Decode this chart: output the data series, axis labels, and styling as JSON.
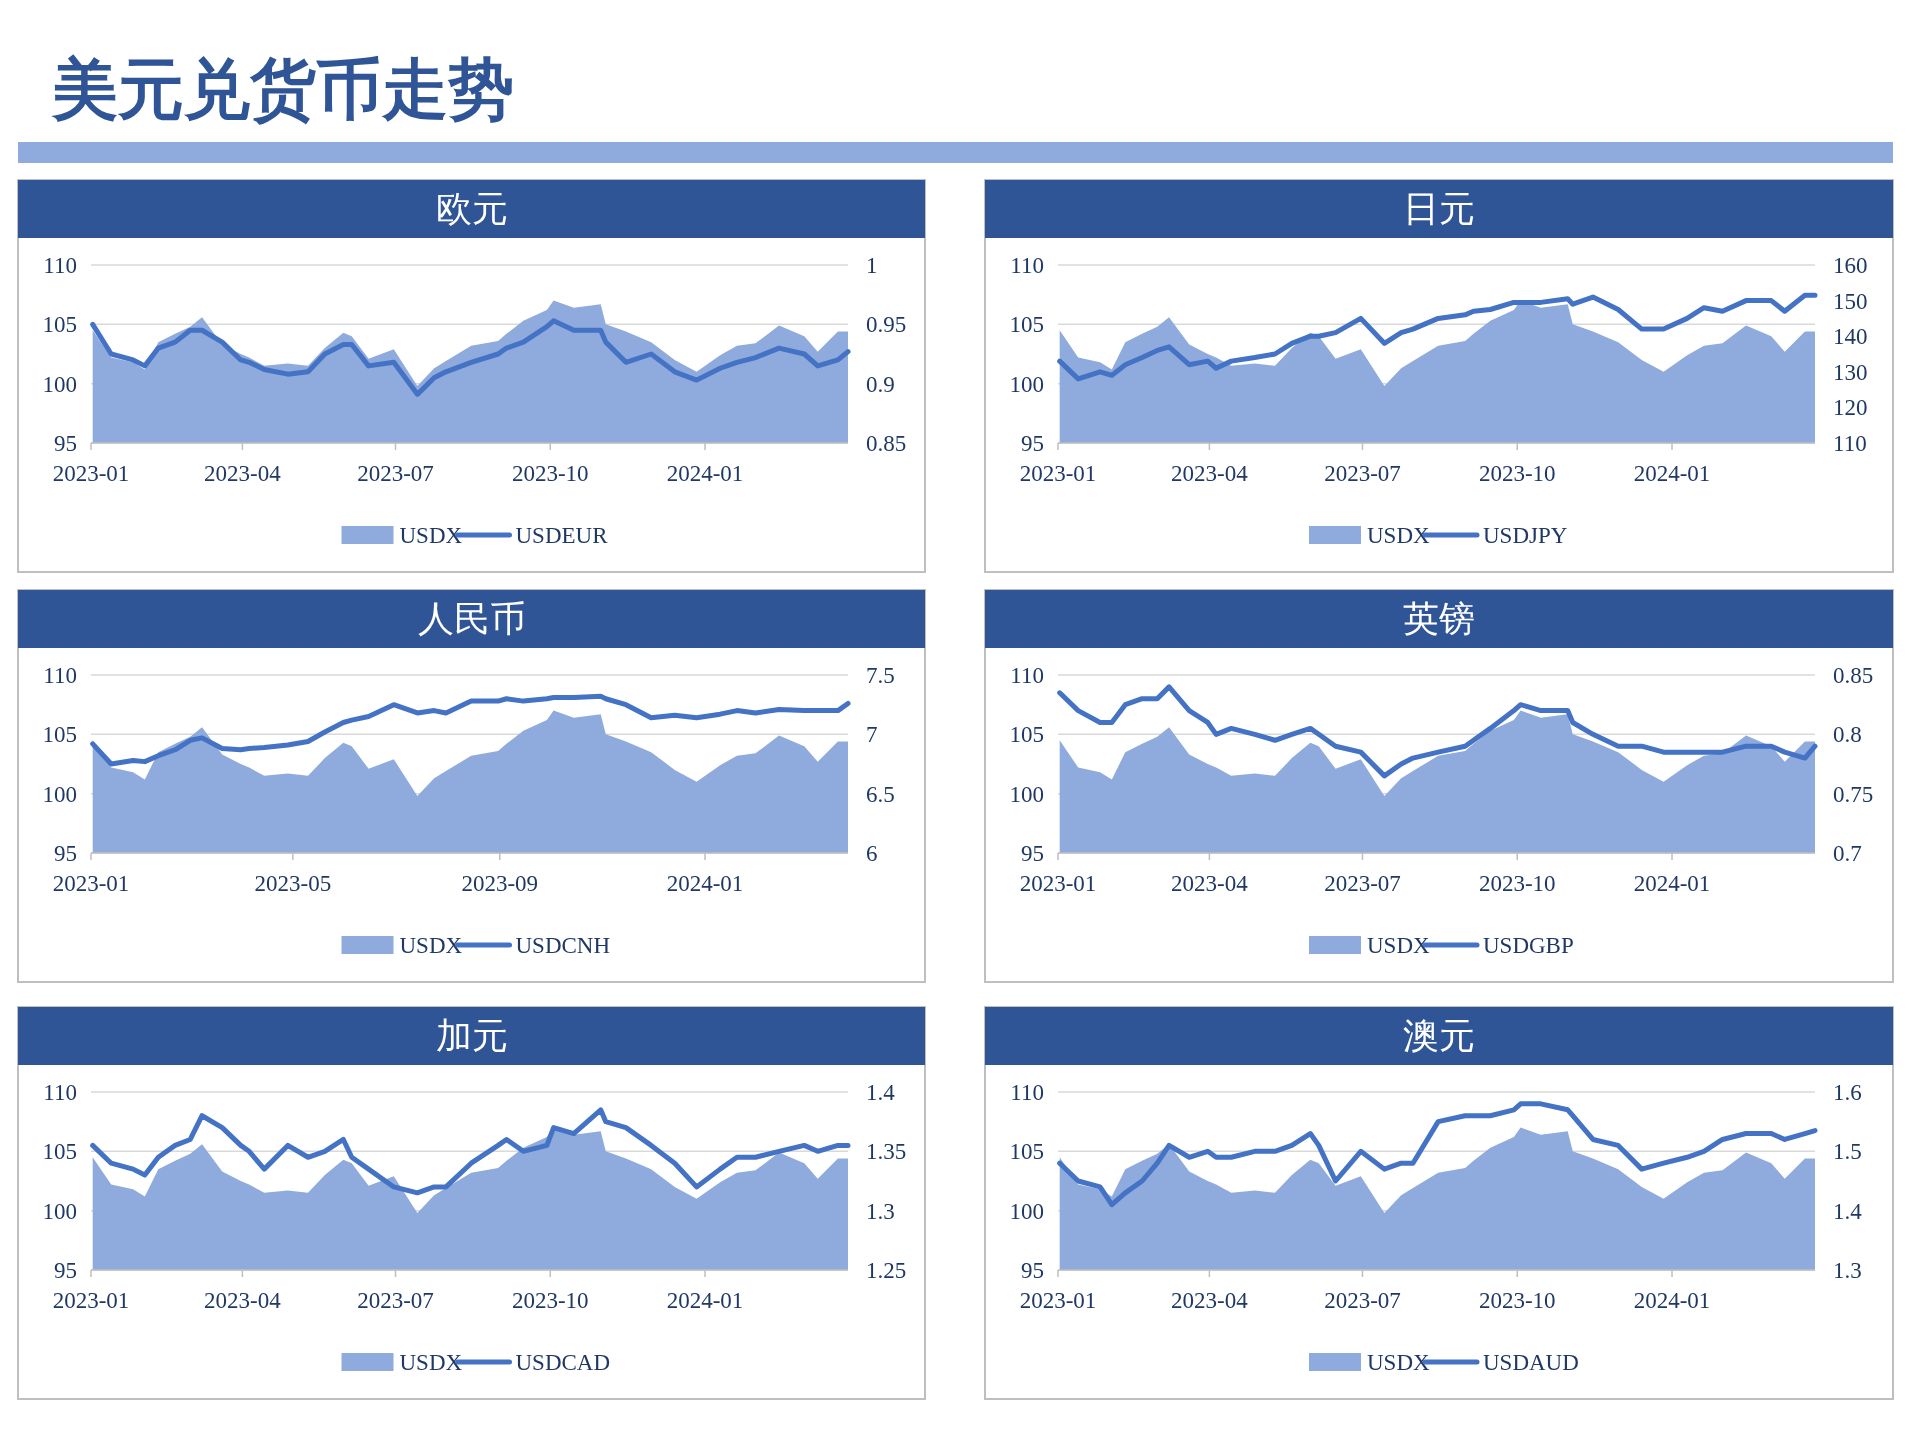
{
  "chart_data": [
    {
      "type": "other",
      "title": "美元兑货币走势"
    },
    {
      "type": "area",
      "title": "欧元",
      "x": [
        "2023-01-02",
        "2023-01-13",
        "2023-01-26",
        "2023-02-02",
        "2023-02-10",
        "2023-02-20",
        "2023-03-01",
        "2023-03-08",
        "2023-03-20",
        "2023-03-31",
        "2023-04-05",
        "2023-04-14",
        "2023-04-28",
        "2023-05-10",
        "2023-05-20",
        "2023-05-31",
        "2023-06-05",
        "2023-06-15",
        "2023-06-30",
        "2023-07-14",
        "2023-07-24",
        "2023-07-31",
        "2023-08-15",
        "2023-08-31",
        "2023-09-05",
        "2023-09-15",
        "2023-09-29",
        "2023-10-03",
        "2023-10-15",
        "2023-10-31",
        "2023-11-03",
        "2023-11-15",
        "2023-11-30",
        "2023-12-14",
        "2023-12-27",
        "2024-01-10",
        "2024-01-20",
        "2024-01-31",
        "2024-02-14",
        "2024-02-29",
        "2024-03-08",
        "2024-03-20",
        "2024-03-26"
      ],
      "xlim": [
        "2023-01-01",
        "2024-03-26"
      ],
      "xticks": [
        "2023-01",
        "2023-04",
        "2023-07",
        "2023-10",
        "2024-01"
      ],
      "ylim": [
        95,
        110
      ],
      "yticks": [
        95,
        100,
        105,
        110
      ],
      "y2lim": [
        0.85,
        1
      ],
      "y2ticks": [
        0.85,
        0.9,
        0.95,
        1
      ],
      "grid": "y",
      "legend": "bottom",
      "series": [
        {
          "name": "USDX",
          "type": "area",
          "color": "#8faadc",
          "values": [
            104.5,
            102.2,
            101.8,
            101.2,
            103.5,
            104.2,
            104.8,
            105.6,
            103.3,
            102.5,
            102.2,
            101.5,
            101.7,
            101.5,
            103.0,
            104.3,
            104.0,
            102.1,
            102.9,
            99.8,
            101.3,
            101.9,
            103.2,
            103.6,
            104.2,
            105.3,
            106.2,
            107.0,
            106.4,
            106.7,
            105.0,
            104.4,
            103.5,
            102.0,
            101.0,
            102.4,
            103.2,
            103.4,
            104.9,
            104.0,
            102.7,
            104.4,
            104.4
          ]
        },
        {
          "name": "USDEUR",
          "type": "line",
          "axis": "y2",
          "color": "#4472c4",
          "values": [
            0.95,
            0.925,
            0.92,
            0.915,
            0.93,
            0.935,
            0.945,
            0.945,
            0.935,
            0.92,
            0.918,
            0.912,
            0.908,
            0.91,
            0.925,
            0.933,
            0.933,
            0.915,
            0.918,
            0.891,
            0.905,
            0.91,
            0.918,
            0.925,
            0.93,
            0.935,
            0.948,
            0.953,
            0.945,
            0.945,
            0.935,
            0.918,
            0.925,
            0.91,
            0.903,
            0.913,
            0.918,
            0.922,
            0.93,
            0.925,
            0.915,
            0.92,
            0.927
          ]
        }
      ]
    },
    {
      "type": "area",
      "title": "日元",
      "x": [
        "2023-01-02",
        "2023-01-13",
        "2023-01-26",
        "2023-02-02",
        "2023-02-10",
        "2023-02-20",
        "2023-03-01",
        "2023-03-08",
        "2023-03-20",
        "2023-03-31",
        "2023-04-05",
        "2023-04-14",
        "2023-04-28",
        "2023-05-10",
        "2023-05-20",
        "2023-05-31",
        "2023-06-05",
        "2023-06-15",
        "2023-06-30",
        "2023-07-14",
        "2023-07-24",
        "2023-07-31",
        "2023-08-15",
        "2023-08-31",
        "2023-09-05",
        "2023-09-15",
        "2023-09-29",
        "2023-10-03",
        "2023-10-15",
        "2023-10-31",
        "2023-11-03",
        "2023-11-15",
        "2023-11-30",
        "2023-12-14",
        "2023-12-27",
        "2024-01-10",
        "2024-01-20",
        "2024-01-31",
        "2024-02-14",
        "2024-02-29",
        "2024-03-08",
        "2024-03-20",
        "2024-03-26"
      ],
      "xlim": [
        "2023-01-01",
        "2024-03-26"
      ],
      "xticks": [
        "2023-01",
        "2023-04",
        "2023-07",
        "2023-10",
        "2024-01"
      ],
      "ylim": [
        95,
        110
      ],
      "yticks": [
        95,
        100,
        105,
        110
      ],
      "y2lim": [
        110,
        160
      ],
      "y2ticks": [
        110,
        120,
        130,
        140,
        150,
        160
      ],
      "grid": "y",
      "legend": "bottom",
      "series": [
        {
          "name": "USDX",
          "type": "area",
          "color": "#8faadc",
          "values": [
            104.5,
            102.2,
            101.8,
            101.2,
            103.5,
            104.2,
            104.8,
            105.6,
            103.3,
            102.5,
            102.2,
            101.5,
            101.7,
            101.5,
            103.0,
            104.3,
            104.0,
            102.1,
            102.9,
            99.8,
            101.3,
            101.9,
            103.2,
            103.6,
            104.2,
            105.3,
            106.2,
            107.0,
            106.4,
            106.7,
            105.0,
            104.4,
            103.5,
            102.0,
            101.0,
            102.4,
            103.2,
            103.4,
            104.9,
            104.0,
            102.7,
            104.4,
            104.4
          ]
        },
        {
          "name": "USDJPY",
          "type": "line",
          "axis": "y2",
          "color": "#4472c4",
          "values": [
            133,
            128,
            130,
            129,
            132,
            134,
            136,
            137,
            132,
            133,
            131,
            133,
            134,
            135,
            138,
            140,
            140,
            141,
            145,
            138,
            141,
            142,
            145,
            146,
            147,
            147.5,
            149.5,
            149.5,
            149.5,
            150.5,
            149,
            151,
            147.5,
            142,
            142,
            145,
            148,
            147,
            150,
            150,
            147,
            151.5,
            151.5
          ]
        }
      ]
    },
    {
      "type": "area",
      "title": "人民币",
      "x": [
        "2023-01-02",
        "2023-01-13",
        "2023-01-26",
        "2023-02-02",
        "2023-02-10",
        "2023-02-20",
        "2023-03-01",
        "2023-03-08",
        "2023-03-20",
        "2023-03-31",
        "2023-04-05",
        "2023-04-14",
        "2023-04-28",
        "2023-05-10",
        "2023-05-20",
        "2023-05-31",
        "2023-06-05",
        "2023-06-15",
        "2023-06-30",
        "2023-07-14",
        "2023-07-24",
        "2023-07-31",
        "2023-08-15",
        "2023-08-31",
        "2023-09-05",
        "2023-09-15",
        "2023-09-29",
        "2023-10-03",
        "2023-10-15",
        "2023-10-31",
        "2023-11-03",
        "2023-11-15",
        "2023-11-30",
        "2023-12-14",
        "2023-12-27",
        "2024-01-10",
        "2024-01-20",
        "2024-01-31",
        "2024-02-14",
        "2024-02-29",
        "2024-03-08",
        "2024-03-20",
        "2024-03-26"
      ],
      "xlim": [
        "2023-01-01",
        "2024-03-26"
      ],
      "xticks": [
        "2023-01",
        "2023-05",
        "2023-09",
        "2024-01"
      ],
      "ylim": [
        95,
        110
      ],
      "yticks": [
        95,
        100,
        105,
        110
      ],
      "y2lim": [
        6,
        7.5
      ],
      "y2ticks": [
        6,
        6.5,
        7,
        7.5
      ],
      "grid": "y",
      "legend": "bottom",
      "series": [
        {
          "name": "USDX",
          "type": "area",
          "color": "#8faadc",
          "values": [
            104.5,
            102.2,
            101.8,
            101.2,
            103.5,
            104.2,
            104.8,
            105.6,
            103.3,
            102.5,
            102.2,
            101.5,
            101.7,
            101.5,
            103.0,
            104.3,
            104.0,
            102.1,
            102.9,
            99.8,
            101.3,
            101.9,
            103.2,
            103.6,
            104.2,
            105.3,
            106.2,
            107.0,
            106.4,
            106.7,
            105.0,
            104.4,
            103.5,
            102.0,
            101.0,
            102.4,
            103.2,
            103.4,
            104.9,
            104.0,
            102.7,
            104.4,
            104.4
          ]
        },
        {
          "name": "USDCNH",
          "type": "line",
          "axis": "y2",
          "color": "#4472c4",
          "values": [
            6.92,
            6.75,
            6.78,
            6.77,
            6.82,
            6.87,
            6.95,
            6.97,
            6.88,
            6.87,
            6.88,
            6.89,
            6.91,
            6.94,
            7.02,
            7.1,
            7.12,
            7.15,
            7.25,
            7.18,
            7.2,
            7.18,
            7.28,
            7.28,
            7.3,
            7.28,
            7.3,
            7.31,
            7.31,
            7.32,
            7.3,
            7.25,
            7.14,
            7.16,
            7.14,
            7.17,
            7.2,
            7.18,
            7.21,
            7.2,
            7.2,
            7.2,
            7.26
          ]
        }
      ]
    },
    {
      "type": "area",
      "title": "英镑",
      "x": [
        "2023-01-02",
        "2023-01-13",
        "2023-01-26",
        "2023-02-02",
        "2023-02-10",
        "2023-02-20",
        "2023-03-01",
        "2023-03-08",
        "2023-03-20",
        "2023-03-31",
        "2023-04-05",
        "2023-04-14",
        "2023-04-28",
        "2023-05-10",
        "2023-05-20",
        "2023-05-31",
        "2023-06-05",
        "2023-06-15",
        "2023-06-30",
        "2023-07-14",
        "2023-07-24",
        "2023-07-31",
        "2023-08-15",
        "2023-08-31",
        "2023-09-05",
        "2023-09-15",
        "2023-09-29",
        "2023-10-03",
        "2023-10-15",
        "2023-10-31",
        "2023-11-03",
        "2023-11-15",
        "2023-11-30",
        "2023-12-14",
        "2023-12-27",
        "2024-01-10",
        "2024-01-20",
        "2024-01-31",
        "2024-02-14",
        "2024-02-29",
        "2024-03-08",
        "2024-03-20",
        "2024-03-26"
      ],
      "xlim": [
        "2023-01-01",
        "2024-03-26"
      ],
      "xticks": [
        "2023-01",
        "2023-04",
        "2023-07",
        "2023-10",
        "2024-01"
      ],
      "ylim": [
        95,
        110
      ],
      "yticks": [
        95,
        100,
        105,
        110
      ],
      "y2lim": [
        0.7,
        0.85
      ],
      "y2ticks": [
        0.7,
        0.75,
        0.8,
        0.85
      ],
      "grid": "y",
      "legend": "bottom",
      "series": [
        {
          "name": "USDX",
          "type": "area",
          "color": "#8faadc",
          "values": [
            104.5,
            102.2,
            101.8,
            101.2,
            103.5,
            104.2,
            104.8,
            105.6,
            103.3,
            102.5,
            102.2,
            101.5,
            101.7,
            101.5,
            103.0,
            104.3,
            104.0,
            102.1,
            102.9,
            99.8,
            101.3,
            101.9,
            103.2,
            103.6,
            104.2,
            105.3,
            106.2,
            107.0,
            106.4,
            106.7,
            105.0,
            104.4,
            103.5,
            102.0,
            101.0,
            102.4,
            103.2,
            103.4,
            104.9,
            104.0,
            102.7,
            104.4,
            104.4
          ]
        },
        {
          "name": "USDGBP",
          "type": "line",
          "axis": "y2",
          "color": "#4472c4",
          "values": [
            0.835,
            0.82,
            0.81,
            0.81,
            0.825,
            0.83,
            0.83,
            0.84,
            0.82,
            0.81,
            0.8,
            0.805,
            0.8,
            0.795,
            0.8,
            0.805,
            0.8,
            0.79,
            0.785,
            0.765,
            0.775,
            0.78,
            0.785,
            0.79,
            0.795,
            0.805,
            0.82,
            0.825,
            0.82,
            0.82,
            0.81,
            0.8,
            0.79,
            0.79,
            0.785,
            0.785,
            0.785,
            0.785,
            0.79,
            0.79,
            0.785,
            0.78,
            0.79
          ]
        }
      ]
    },
    {
      "type": "area",
      "title": "加元",
      "x": [
        "2023-01-02",
        "2023-01-13",
        "2023-01-26",
        "2023-02-02",
        "2023-02-10",
        "2023-02-20",
        "2023-03-01",
        "2023-03-08",
        "2023-03-20",
        "2023-03-31",
        "2023-04-05",
        "2023-04-14",
        "2023-04-28",
        "2023-05-10",
        "2023-05-20",
        "2023-05-31",
        "2023-06-05",
        "2023-06-15",
        "2023-06-30",
        "2023-07-14",
        "2023-07-24",
        "2023-07-31",
        "2023-08-15",
        "2023-08-31",
        "2023-09-05",
        "2023-09-15",
        "2023-09-29",
        "2023-10-03",
        "2023-10-15",
        "2023-10-31",
        "2023-11-03",
        "2023-11-15",
        "2023-11-30",
        "2023-12-14",
        "2023-12-27",
        "2024-01-10",
        "2024-01-20",
        "2024-01-31",
        "2024-02-14",
        "2024-02-29",
        "2024-03-08",
        "2024-03-20",
        "2024-03-26"
      ],
      "xlim": [
        "2023-01-01",
        "2024-03-26"
      ],
      "xticks": [
        "2023-01",
        "2023-04",
        "2023-07",
        "2023-10",
        "2024-01"
      ],
      "ylim": [
        95,
        110
      ],
      "yticks": [
        95,
        100,
        105,
        110
      ],
      "y2lim": [
        1.25,
        1.4
      ],
      "y2ticks": [
        1.25,
        1.3,
        1.35,
        1.4
      ],
      "grid": "y",
      "legend": "bottom",
      "series": [
        {
          "name": "USDX",
          "type": "area",
          "color": "#8faadc",
          "values": [
            104.5,
            102.2,
            101.8,
            101.2,
            103.5,
            104.2,
            104.8,
            105.6,
            103.3,
            102.5,
            102.2,
            101.5,
            101.7,
            101.5,
            103.0,
            104.3,
            104.0,
            102.1,
            102.9,
            99.8,
            101.3,
            101.9,
            103.2,
            103.6,
            104.2,
            105.3,
            106.2,
            107.0,
            106.4,
            106.7,
            105.0,
            104.4,
            103.5,
            102.0,
            101.0,
            102.4,
            103.2,
            103.4,
            104.9,
            104.0,
            102.7,
            104.4,
            104.4
          ]
        },
        {
          "name": "USDCAD",
          "type": "line",
          "axis": "y2",
          "color": "#4472c4",
          "values": [
            1.355,
            1.34,
            1.335,
            1.33,
            1.345,
            1.355,
            1.36,
            1.38,
            1.37,
            1.355,
            1.35,
            1.335,
            1.355,
            1.345,
            1.35,
            1.36,
            1.345,
            1.335,
            1.32,
            1.315,
            1.32,
            1.32,
            1.34,
            1.355,
            1.36,
            1.35,
            1.355,
            1.37,
            1.365,
            1.385,
            1.375,
            1.37,
            1.355,
            1.34,
            1.32,
            1.335,
            1.345,
            1.345,
            1.35,
            1.355,
            1.35,
            1.355,
            1.355
          ]
        }
      ]
    },
    {
      "type": "area",
      "title": "澳元",
      "x": [
        "2023-01-02",
        "2023-01-13",
        "2023-01-26",
        "2023-02-02",
        "2023-02-10",
        "2023-02-20",
        "2023-03-01",
        "2023-03-08",
        "2023-03-20",
        "2023-03-31",
        "2023-04-05",
        "2023-04-14",
        "2023-04-28",
        "2023-05-10",
        "2023-05-20",
        "2023-05-31",
        "2023-06-05",
        "2023-06-15",
        "2023-06-30",
        "2023-07-14",
        "2023-07-24",
        "2023-07-31",
        "2023-08-15",
        "2023-08-31",
        "2023-09-05",
        "2023-09-15",
        "2023-09-29",
        "2023-10-03",
        "2023-10-15",
        "2023-10-31",
        "2023-11-03",
        "2023-11-15",
        "2023-11-30",
        "2023-12-14",
        "2023-12-27",
        "2024-01-10",
        "2024-01-20",
        "2024-01-31",
        "2024-02-14",
        "2024-02-29",
        "2024-03-08",
        "2024-03-20",
        "2024-03-26"
      ],
      "xlim": [
        "2023-01-01",
        "2024-03-26"
      ],
      "xticks": [
        "2023-01",
        "2023-04",
        "2023-07",
        "2023-10",
        "2024-01"
      ],
      "ylim": [
        95,
        110
      ],
      "yticks": [
        95,
        100,
        105,
        110
      ],
      "y2lim": [
        1.3,
        1.6
      ],
      "y2ticks": [
        1.3,
        1.4,
        1.5,
        1.6
      ],
      "grid": "y",
      "legend": "bottom",
      "series": [
        {
          "name": "USDX",
          "type": "area",
          "color": "#8faadc",
          "values": [
            104.5,
            102.2,
            101.8,
            101.2,
            103.5,
            104.2,
            104.8,
            105.6,
            103.3,
            102.5,
            102.2,
            101.5,
            101.7,
            101.5,
            103.0,
            104.3,
            104.0,
            102.1,
            102.9,
            99.8,
            101.3,
            101.9,
            103.2,
            103.6,
            104.2,
            105.3,
            106.2,
            107.0,
            106.4,
            106.7,
            105.0,
            104.4,
            103.5,
            102.0,
            101.0,
            102.4,
            103.2,
            103.4,
            104.9,
            104.0,
            102.7,
            104.4,
            104.4
          ]
        },
        {
          "name": "USDAUD",
          "type": "line",
          "axis": "y2",
          "color": "#4472c4",
          "values": [
            1.48,
            1.45,
            1.44,
            1.41,
            1.43,
            1.45,
            1.48,
            1.51,
            1.49,
            1.5,
            1.49,
            1.49,
            1.5,
            1.5,
            1.51,
            1.53,
            1.51,
            1.45,
            1.5,
            1.47,
            1.48,
            1.48,
            1.55,
            1.56,
            1.56,
            1.56,
            1.57,
            1.58,
            1.58,
            1.57,
            1.56,
            1.52,
            1.51,
            1.47,
            1.48,
            1.49,
            1.5,
            1.52,
            1.53,
            1.53,
            1.52,
            1.53,
            1.535
          ]
        }
      ]
    }
  ]
}
